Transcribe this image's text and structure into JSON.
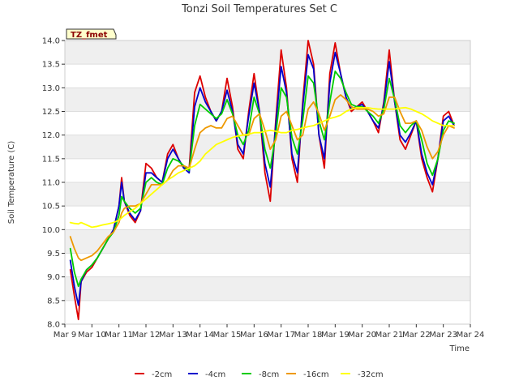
{
  "chart_data": {
    "type": "line",
    "title": "Tonzi Soil Temperatures Set C",
    "xlabel": "Time",
    "ylabel": "Soil Temperature (C)",
    "site_label": "TZ_fmet",
    "x_ticks": [
      "Mar 9",
      "Mar 10",
      "Mar 11",
      "Mar 12",
      "Mar 13",
      "Mar 14",
      "Mar 15",
      "Mar 16",
      "Mar 17",
      "Mar 18",
      "Mar 19",
      "Mar 20",
      "Mar 21",
      "Mar 22",
      "Mar 23",
      "Mar 24"
    ],
    "y_ticks": [
      "8.0",
      "8.5",
      "9.0",
      "9.5",
      "10.0",
      "10.5",
      "11.0",
      "11.5",
      "12.0",
      "12.5",
      "13.0",
      "13.5",
      "14.0"
    ],
    "xlim": [
      9,
      24
    ],
    "ylim": [
      8.0,
      14.0
    ],
    "grid": true,
    "legend_placement": "bottom",
    "series": [
      {
        "name": "-2cm",
        "color": "#dd0000",
        "x": [
          9.2,
          9.35,
          9.5,
          9.6,
          9.8,
          10.0,
          10.2,
          10.4,
          10.6,
          10.8,
          11.0,
          11.1,
          11.2,
          11.4,
          11.6,
          11.8,
          12.0,
          12.2,
          12.4,
          12.6,
          12.8,
          13.0,
          13.2,
          13.4,
          13.6,
          13.8,
          14.0,
          14.2,
          14.4,
          14.6,
          14.8,
          15.0,
          15.2,
          15.4,
          15.6,
          15.8,
          16.0,
          16.2,
          16.4,
          16.6,
          16.8,
          17.0,
          17.2,
          17.4,
          17.6,
          17.8,
          18.0,
          18.2,
          18.4,
          18.6,
          18.8,
          19.0,
          19.2,
          19.4,
          19.6,
          19.8,
          20.0,
          20.2,
          20.4,
          20.6,
          20.8,
          21.0,
          21.2,
          21.4,
          21.6,
          21.8,
          22.0,
          22.2,
          22.4,
          22.6,
          22.8,
          23.0,
          23.2,
          23.4
        ],
        "values": [
          9.15,
          8.6,
          8.1,
          8.9,
          9.1,
          9.2,
          9.4,
          9.6,
          9.8,
          10.0,
          10.5,
          11.1,
          10.6,
          10.3,
          10.15,
          10.4,
          11.4,
          11.3,
          11.1,
          11.0,
          11.6,
          11.8,
          11.5,
          11.3,
          11.3,
          12.9,
          13.25,
          12.8,
          12.5,
          12.3,
          12.5,
          13.2,
          12.6,
          11.7,
          11.5,
          12.5,
          13.3,
          12.5,
          11.2,
          10.6,
          12.3,
          13.8,
          13.0,
          11.5,
          11.0,
          12.7,
          14.0,
          13.5,
          12.0,
          11.3,
          13.3,
          13.95,
          13.3,
          12.8,
          12.5,
          12.6,
          12.7,
          12.5,
          12.3,
          12.05,
          12.7,
          13.8,
          12.7,
          11.9,
          11.7,
          12.0,
          12.3,
          11.5,
          11.1,
          10.8,
          11.5,
          12.4,
          12.5,
          12.2
        ]
      },
      {
        "name": "-4cm",
        "color": "#0000cc",
        "x": [
          9.2,
          9.35,
          9.5,
          9.6,
          9.8,
          10.0,
          10.2,
          10.4,
          10.6,
          10.8,
          11.0,
          11.1,
          11.2,
          11.4,
          11.6,
          11.8,
          12.0,
          12.2,
          12.4,
          12.6,
          12.8,
          13.0,
          13.2,
          13.4,
          13.6,
          13.8,
          14.0,
          14.2,
          14.4,
          14.6,
          14.8,
          15.0,
          15.2,
          15.4,
          15.6,
          15.8,
          16.0,
          16.2,
          16.4,
          16.6,
          16.8,
          17.0,
          17.2,
          17.4,
          17.6,
          17.8,
          18.0,
          18.2,
          18.4,
          18.6,
          18.8,
          19.0,
          19.2,
          19.4,
          19.6,
          19.8,
          20.0,
          20.2,
          20.4,
          20.6,
          20.8,
          21.0,
          21.2,
          21.4,
          21.6,
          21.8,
          22.0,
          22.2,
          22.4,
          22.6,
          22.8,
          23.0,
          23.2,
          23.4
        ],
        "values": [
          9.35,
          8.8,
          8.4,
          8.9,
          9.15,
          9.25,
          9.4,
          9.6,
          9.8,
          10.0,
          10.5,
          11.0,
          10.6,
          10.35,
          10.2,
          10.4,
          11.2,
          11.2,
          11.1,
          11.0,
          11.5,
          11.7,
          11.5,
          11.3,
          11.2,
          12.6,
          13.0,
          12.7,
          12.5,
          12.3,
          12.5,
          12.95,
          12.5,
          11.8,
          11.6,
          12.4,
          13.1,
          12.5,
          11.4,
          10.9,
          12.2,
          13.45,
          12.9,
          11.6,
          11.2,
          12.6,
          13.7,
          13.4,
          12.0,
          11.5,
          13.1,
          13.75,
          13.3,
          12.8,
          12.55,
          12.6,
          12.65,
          12.5,
          12.3,
          12.15,
          12.65,
          13.55,
          12.7,
          12.0,
          11.85,
          12.05,
          12.3,
          11.6,
          11.2,
          10.95,
          11.5,
          12.3,
          12.4,
          12.2
        ]
      },
      {
        "name": "-8cm",
        "color": "#00cc00",
        "x": [
          9.2,
          9.35,
          9.5,
          9.6,
          9.8,
          10.0,
          10.2,
          10.4,
          10.6,
          10.8,
          11.0,
          11.1,
          11.2,
          11.4,
          11.6,
          11.8,
          12.0,
          12.2,
          12.4,
          12.6,
          12.8,
          13.0,
          13.2,
          13.4,
          13.6,
          13.8,
          14.0,
          14.2,
          14.4,
          14.6,
          14.8,
          15.0,
          15.2,
          15.4,
          15.6,
          15.8,
          16.0,
          16.2,
          16.4,
          16.6,
          16.8,
          17.0,
          17.2,
          17.4,
          17.6,
          17.8,
          18.0,
          18.2,
          18.4,
          18.6,
          18.8,
          19.0,
          19.2,
          19.4,
          19.6,
          19.8,
          20.0,
          20.2,
          20.4,
          20.6,
          20.8,
          21.0,
          21.2,
          21.4,
          21.6,
          21.8,
          22.0,
          22.2,
          22.4,
          22.6,
          22.8,
          23.0,
          23.2,
          23.4
        ],
        "values": [
          9.6,
          9.1,
          8.8,
          8.95,
          9.15,
          9.25,
          9.4,
          9.6,
          9.8,
          9.95,
          10.3,
          10.7,
          10.6,
          10.45,
          10.35,
          10.45,
          11.0,
          11.1,
          11.0,
          10.95,
          11.3,
          11.5,
          11.45,
          11.35,
          11.25,
          12.2,
          12.65,
          12.55,
          12.45,
          12.35,
          12.45,
          12.75,
          12.45,
          12.0,
          11.8,
          12.1,
          12.8,
          12.45,
          11.7,
          11.3,
          12.0,
          13.0,
          12.8,
          11.95,
          11.6,
          12.3,
          13.25,
          13.1,
          12.3,
          11.9,
          12.7,
          13.35,
          13.2,
          12.9,
          12.65,
          12.6,
          12.6,
          12.5,
          12.4,
          12.25,
          12.55,
          13.2,
          12.75,
          12.2,
          12.05,
          12.2,
          12.3,
          11.9,
          11.4,
          11.15,
          11.5,
          12.1,
          12.3,
          12.25
        ]
      },
      {
        "name": "-16cm",
        "color": "#ee9900",
        "x": [
          9.2,
          9.35,
          9.5,
          9.6,
          9.8,
          10.0,
          10.2,
          10.4,
          10.6,
          10.8,
          11.0,
          11.1,
          11.2,
          11.4,
          11.6,
          11.8,
          12.0,
          12.2,
          12.4,
          12.6,
          12.8,
          13.0,
          13.2,
          13.4,
          13.6,
          13.8,
          14.0,
          14.2,
          14.4,
          14.6,
          14.8,
          15.0,
          15.2,
          15.4,
          15.6,
          15.8,
          16.0,
          16.2,
          16.4,
          16.6,
          16.8,
          17.0,
          17.2,
          17.4,
          17.6,
          17.8,
          18.0,
          18.2,
          18.4,
          18.6,
          18.8,
          19.0,
          19.2,
          19.4,
          19.6,
          19.8,
          20.0,
          20.2,
          20.4,
          20.6,
          20.8,
          21.0,
          21.2,
          21.4,
          21.6,
          21.8,
          22.0,
          22.2,
          22.4,
          22.6,
          22.8,
          23.0,
          23.2,
          23.4
        ],
        "values": [
          9.85,
          9.6,
          9.4,
          9.35,
          9.4,
          9.45,
          9.55,
          9.7,
          9.85,
          9.95,
          10.15,
          10.35,
          10.45,
          10.5,
          10.5,
          10.55,
          10.75,
          10.95,
          10.95,
          10.95,
          11.05,
          11.25,
          11.35,
          11.35,
          11.3,
          11.7,
          12.05,
          12.15,
          12.2,
          12.15,
          12.15,
          12.35,
          12.4,
          12.2,
          12.0,
          12.0,
          12.35,
          12.45,
          12.1,
          11.7,
          11.9,
          12.4,
          12.5,
          12.2,
          11.9,
          12.0,
          12.55,
          12.7,
          12.45,
          12.1,
          12.4,
          12.75,
          12.85,
          12.75,
          12.6,
          12.55,
          12.55,
          12.55,
          12.5,
          12.4,
          12.45,
          12.8,
          12.8,
          12.5,
          12.25,
          12.25,
          12.3,
          12.1,
          11.75,
          11.5,
          11.65,
          12.0,
          12.2,
          12.15
        ]
      },
      {
        "name": "-32cm",
        "color": "#ffff00",
        "x": [
          9.2,
          9.35,
          9.5,
          9.6,
          9.8,
          10.0,
          10.2,
          10.4,
          10.6,
          10.8,
          11.0,
          11.1,
          11.2,
          11.4,
          11.6,
          11.8,
          12.0,
          12.2,
          12.4,
          12.6,
          12.8,
          13.0,
          13.2,
          13.4,
          13.6,
          13.8,
          14.0,
          14.2,
          14.4,
          14.6,
          14.8,
          15.0,
          15.2,
          15.4,
          15.6,
          15.8,
          16.0,
          16.2,
          16.4,
          16.6,
          16.8,
          17.0,
          17.2,
          17.4,
          17.6,
          17.8,
          18.0,
          18.2,
          18.4,
          18.6,
          18.8,
          19.0,
          19.2,
          19.4,
          19.6,
          19.8,
          20.0,
          20.2,
          20.4,
          20.6,
          20.8,
          21.0,
          21.2,
          21.4,
          21.6,
          21.8,
          22.0,
          22.2,
          22.4,
          22.6,
          22.8,
          23.0,
          23.2,
          23.4
        ],
        "values": [
          10.15,
          10.13,
          10.12,
          10.15,
          10.1,
          10.05,
          10.07,
          10.1,
          10.12,
          10.15,
          10.2,
          10.25,
          10.3,
          10.38,
          10.45,
          10.55,
          10.65,
          10.75,
          10.85,
          10.95,
          11.05,
          11.12,
          11.2,
          11.25,
          11.3,
          11.35,
          11.45,
          11.6,
          11.7,
          11.8,
          11.85,
          11.9,
          11.95,
          11.98,
          12.0,
          12.02,
          12.05,
          12.05,
          12.08,
          12.1,
          12.08,
          12.05,
          12.05,
          12.1,
          12.12,
          12.15,
          12.18,
          12.2,
          12.25,
          12.3,
          12.35,
          12.38,
          12.42,
          12.5,
          12.55,
          12.58,
          12.58,
          12.58,
          12.56,
          12.55,
          12.55,
          12.55,
          12.55,
          12.57,
          12.58,
          12.55,
          12.5,
          12.45,
          12.38,
          12.3,
          12.25,
          12.2,
          12.2,
          12.2
        ]
      }
    ]
  }
}
